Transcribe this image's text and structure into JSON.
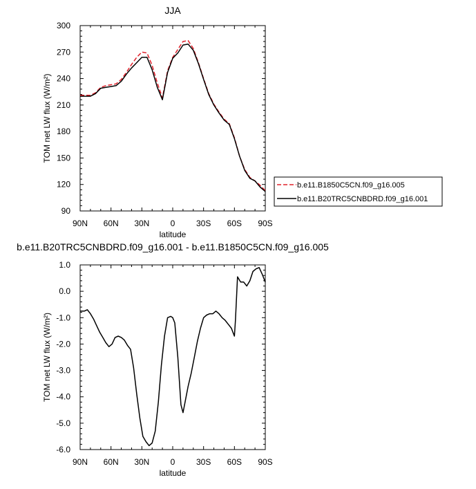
{
  "chart_data": [
    {
      "type": "line",
      "title": "JJA",
      "xlabel": "latitude",
      "ylabel": "TOM net LW flux (W/m²)",
      "xlim": [
        90,
        -90
      ],
      "ylim": [
        90,
        300
      ],
      "x_tick_values": [
        90,
        60,
        30,
        0,
        -30,
        -60,
        -90
      ],
      "x_tick_labels": [
        "90N",
        "60N",
        "30N",
        "0",
        "30S",
        "60S",
        "90S"
      ],
      "y_ticks": [
        "90",
        "120",
        "150",
        "180",
        "210",
        "240",
        "270",
        "300"
      ],
      "legend_position": "right",
      "series": [
        {
          "name": "b.e11.B1850C5CN.f09_g16.005",
          "color": "#e0202a",
          "dash": "dashed",
          "x": [
            90,
            85,
            80,
            75,
            70,
            65,
            60,
            55,
            50,
            45,
            40,
            35,
            30,
            25,
            20,
            15,
            10,
            5,
            0,
            -5,
            -10,
            -15,
            -20,
            -25,
            -30,
            -35,
            -40,
            -45,
            -50,
            -55,
            -60,
            -65,
            -70,
            -75,
            -80,
            -85,
            -90
          ],
          "y": [
            221,
            221,
            221,
            224,
            230,
            232,
            233,
            234,
            239,
            247,
            256,
            264,
            270,
            269,
            255,
            235,
            218,
            249,
            264,
            273,
            282,
            283,
            274,
            258,
            240,
            223,
            211,
            202,
            194,
            189,
            173,
            152,
            137,
            128,
            124,
            119,
            113
          ]
        },
        {
          "name": "b.e11.B20TRC5CNBDRD.f09_g16.001",
          "color": "#000000",
          "dash": "solid",
          "x": [
            90,
            85,
            80,
            75,
            70,
            65,
            60,
            55,
            50,
            45,
            40,
            35,
            30,
            25,
            20,
            15,
            10,
            5,
            0,
            -5,
            -10,
            -15,
            -20,
            -25,
            -30,
            -35,
            -40,
            -45,
            -50,
            -55,
            -60,
            -65,
            -70,
            -75,
            -80,
            -85,
            -90
          ],
          "y": [
            220,
            220,
            220,
            223,
            229,
            230,
            231,
            232,
            237,
            245,
            252,
            258,
            264,
            264,
            250,
            230,
            216,
            247,
            263,
            269,
            278,
            279,
            272,
            257,
            239,
            222,
            210,
            201,
            193,
            188,
            172,
            152,
            136,
            127,
            124,
            117,
            112
          ]
        }
      ]
    },
    {
      "type": "line",
      "title": "b.e11.B20TRC5CNBDRD.f09_g16.001 - b.e11.B1850C5CN.f09_g16.005",
      "xlabel": "latitude",
      "ylabel": "TOM net LW flux (W/m²)",
      "xlim": [
        90,
        -90
      ],
      "ylim": [
        -6.0,
        1.0
      ],
      "x_tick_values": [
        90,
        60,
        30,
        0,
        -30,
        -60,
        -90
      ],
      "x_tick_labels": [
        "90N",
        "60N",
        "30N",
        "0",
        "30S",
        "60S",
        "90S"
      ],
      "y_ticks": [
        "-6.0",
        "-5.0",
        "-4.0",
        "-3.0",
        "-2.0",
        "-1.0",
        "0.0",
        "1.0"
      ],
      "series": [
        {
          "color": "#000000",
          "x": [
            90,
            86,
            83,
            80,
            77,
            74,
            71,
            68,
            65,
            62,
            59,
            56,
            53,
            50,
            47,
            44,
            41,
            38,
            35,
            32,
            29,
            26,
            23,
            20,
            17,
            14,
            11,
            8,
            5,
            2,
            0,
            -2,
            -5,
            -8,
            -10,
            -12,
            -15,
            -18,
            -21,
            -24,
            -27,
            -30,
            -33,
            -36,
            -39,
            -42,
            -45,
            -48,
            -51,
            -54,
            -57,
            -60,
            -61,
            -63,
            -66,
            -69,
            -72,
            -75,
            -78,
            -81,
            -84,
            -87,
            -90
          ],
          "y": [
            -0.75,
            -0.75,
            -0.7,
            -0.85,
            -1.05,
            -1.3,
            -1.55,
            -1.75,
            -1.95,
            -2.1,
            -2.0,
            -1.75,
            -1.7,
            -1.75,
            -1.85,
            -2.05,
            -2.2,
            -2.9,
            -3.9,
            -4.8,
            -5.5,
            -5.7,
            -5.85,
            -5.75,
            -5.3,
            -4.2,
            -2.8,
            -1.7,
            -1.0,
            -0.95,
            -1.0,
            -1.2,
            -2.5,
            -4.3,
            -4.6,
            -4.2,
            -3.6,
            -3.1,
            -2.5,
            -1.9,
            -1.4,
            -1.0,
            -0.9,
            -0.85,
            -0.85,
            -0.75,
            -0.85,
            -1.0,
            -1.1,
            -1.25,
            -1.4,
            -1.7,
            -1.1,
            0.55,
            0.35,
            0.35,
            0.2,
            0.4,
            0.75,
            0.85,
            0.9,
            0.65,
            0.35
          ]
        }
      ]
    }
  ]
}
